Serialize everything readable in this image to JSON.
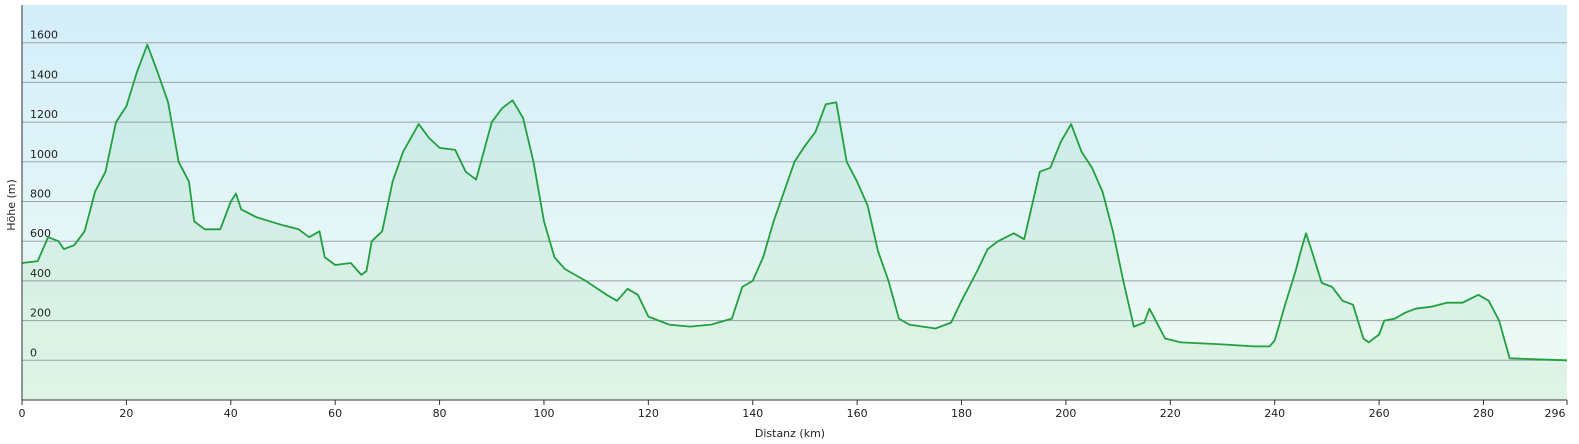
{
  "chart_data": {
    "type": "area",
    "xlabel": "Distanz  (km)",
    "ylabel": "Höhe (m)",
    "color": "#22a040",
    "grid": true,
    "xlim": [
      0,
      296
    ],
    "ylim": [
      -200,
      1790
    ],
    "xticks": [
      0,
      20,
      40,
      60,
      80,
      100,
      120,
      140,
      160,
      180,
      200,
      220,
      240,
      260,
      280,
      296
    ],
    "yticks": [
      0,
      200,
      400,
      600,
      800,
      1000,
      1200,
      1400,
      1600
    ],
    "x": [
      0,
      3,
      5,
      7,
      8,
      10,
      12,
      14,
      16,
      18,
      20,
      22,
      24,
      26,
      28,
      30,
      32,
      33,
      35,
      38,
      40,
      41,
      42,
      45,
      50,
      53,
      55,
      57,
      58,
      60,
      63,
      65,
      66,
      67,
      69,
      71,
      73,
      76,
      78,
      80,
      83,
      85,
      87,
      90,
      92,
      94,
      96,
      98,
      100,
      102,
      104,
      108,
      112,
      114,
      116,
      118,
      120,
      124,
      128,
      132,
      136,
      138,
      140,
      142,
      144,
      146,
      148,
      150,
      152,
      154,
      156,
      158,
      160,
      162,
      164,
      166,
      168,
      170,
      175,
      178,
      180,
      183,
      185,
      187,
      190,
      192,
      195,
      197,
      199,
      201,
      203,
      205,
      207,
      209,
      211,
      213,
      215,
      216,
      217,
      219,
      222,
      230,
      236,
      239,
      240,
      242,
      244,
      245,
      246,
      247,
      249,
      251,
      253,
      255,
      257,
      258,
      260,
      261,
      263,
      265,
      267,
      270,
      273,
      276,
      279,
      281,
      283,
      285,
      290,
      296
    ],
    "values": [
      490,
      500,
      620,
      600,
      560,
      580,
      650,
      850,
      950,
      1200,
      1280,
      1450,
      1590,
      1450,
      1300,
      1000,
      900,
      700,
      660,
      660,
      800,
      840,
      760,
      720,
      680,
      660,
      620,
      650,
      520,
      480,
      490,
      430,
      450,
      600,
      650,
      900,
      1050,
      1190,
      1120,
      1070,
      1060,
      950,
      910,
      1200,
      1270,
      1310,
      1220,
      1000,
      700,
      520,
      460,
      400,
      330,
      300,
      360,
      330,
      220,
      180,
      170,
      180,
      210,
      370,
      400,
      520,
      700,
      850,
      1000,
      1080,
      1150,
      1290,
      1300,
      1000,
      900,
      780,
      550,
      400,
      210,
      180,
      160,
      190,
      300,
      450,
      560,
      600,
      640,
      610,
      950,
      970,
      1100,
      1190,
      1050,
      970,
      850,
      650,
      400,
      170,
      190,
      260,
      210,
      110,
      90,
      80,
      70,
      70,
      100,
      280,
      450,
      550,
      640,
      560,
      390,
      370,
      300,
      280,
      110,
      90,
      130,
      200,
      210,
      240,
      260,
      270,
      290,
      290,
      330,
      300,
      200,
      10,
      5,
      0
    ]
  }
}
